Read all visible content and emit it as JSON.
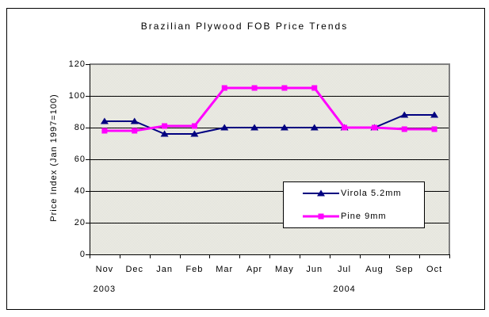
{
  "chart_data": {
    "type": "line",
    "title": "Brazilian Plywood FOB Price Trends",
    "xlabel": "",
    "ylabel": "Price Index (Jan 1997=100)",
    "categories": [
      "Nov",
      "Dec",
      "Jan",
      "Feb",
      "Mar",
      "Apr",
      "May",
      "Jun",
      "Jul",
      "Aug",
      "Sep",
      "Oct"
    ],
    "year_labels": [
      {
        "text": "2003",
        "under_category_index": 0
      },
      {
        "text": "2004",
        "under_category_index": 8
      }
    ],
    "ylim": [
      0,
      120
    ],
    "yticks": [
      0,
      20,
      40,
      60,
      80,
      100,
      120
    ],
    "grid": true,
    "legend_position": "inside-right",
    "series": [
      {
        "name": "Virola 5.2mm",
        "color": "#000080",
        "marker": "triangle",
        "line_width": 2,
        "values": [
          84,
          84,
          76,
          76,
          80,
          80,
          80,
          80,
          80,
          80,
          88,
          88
        ]
      },
      {
        "name": "Pine 9mm",
        "color": "#FF00FF",
        "marker": "square",
        "line_width": 3,
        "values": [
          78,
          78,
          81,
          81,
          105,
          105,
          105,
          105,
          80,
          80,
          79,
          79
        ]
      }
    ]
  },
  "colors": {
    "plot_border": "#808080",
    "gridline": "#000000",
    "axis": "#000000",
    "legend_bg": "#ffffff",
    "page_bg": "#ffffff"
  }
}
